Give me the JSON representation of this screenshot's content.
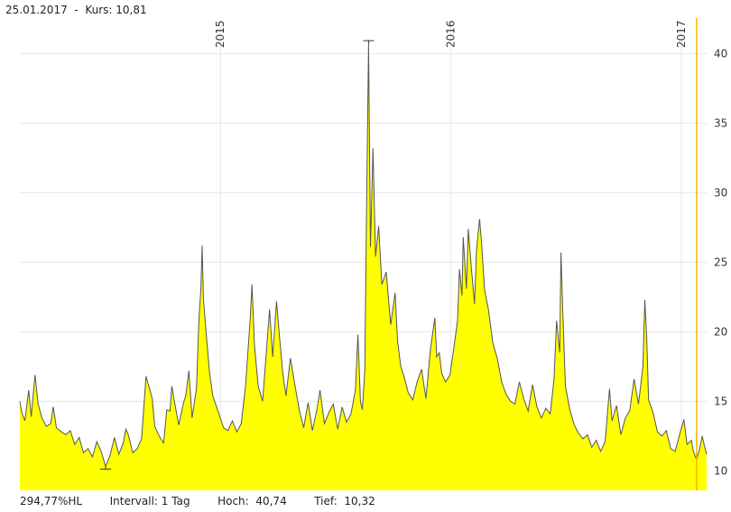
{
  "header": {
    "date": "25.01.2017",
    "separator": "-",
    "price_label": "Kurs:",
    "price_value": "10,81"
  },
  "footer": {
    "hl": "294,77%HL",
    "interval_label": "Intervall:",
    "interval_value": "1 Tag",
    "high_label": "Hoch:",
    "high_value": "40,74",
    "low_label": "Tief:",
    "low_value": "10,32"
  },
  "colors": {
    "fill": "#ffff00",
    "line": "#555555",
    "cursor": "#ffb300"
  },
  "chart_data": {
    "type": "area",
    "title": "",
    "xlabel": "",
    "ylabel": "",
    "ylim": [
      8.6,
      42.3
    ],
    "xlim": [
      "2014-02-17",
      "2017-02-10"
    ],
    "yticks": [
      10,
      15,
      20,
      25,
      30,
      35,
      40
    ],
    "year_markers": [
      {
        "label": "2015",
        "date": "2015-01-01"
      },
      {
        "label": "2016",
        "date": "2016-01-01"
      },
      {
        "label": "2017",
        "date": "2017-01-01"
      }
    ],
    "cursor_date": "2017-01-25",
    "high": {
      "date": "2015-08-24",
      "value": 40.74
    },
    "low": {
      "date": "2014-07-03",
      "value": 10.32
    },
    "grid": true,
    "series": [
      {
        "points": [
          [
            "2014-02-17",
            15.0
          ],
          [
            "2014-02-20",
            14.2
          ],
          [
            "2014-02-25",
            13.6
          ],
          [
            "2014-03-03",
            15.8
          ],
          [
            "2014-03-07",
            13.9
          ],
          [
            "2014-03-13",
            16.9
          ],
          [
            "2014-03-18",
            14.8
          ],
          [
            "2014-03-24",
            13.8
          ],
          [
            "2014-03-31",
            13.2
          ],
          [
            "2014-04-07",
            13.4
          ],
          [
            "2014-04-11",
            14.6
          ],
          [
            "2014-04-16",
            13.1
          ],
          [
            "2014-04-24",
            12.8
          ],
          [
            "2014-05-01",
            12.6
          ],
          [
            "2014-05-08",
            12.9
          ],
          [
            "2014-05-15",
            11.9
          ],
          [
            "2014-05-22",
            12.4
          ],
          [
            "2014-05-29",
            11.3
          ],
          [
            "2014-06-05",
            11.6
          ],
          [
            "2014-06-12",
            11.0
          ],
          [
            "2014-06-19",
            12.1
          ],
          [
            "2014-06-26",
            11.4
          ],
          [
            "2014-07-03",
            10.32
          ],
          [
            "2014-07-10",
            11.1
          ],
          [
            "2014-07-17",
            12.4
          ],
          [
            "2014-07-24",
            11.2
          ],
          [
            "2014-07-31",
            12.0
          ],
          [
            "2014-08-04",
            13.0
          ],
          [
            "2014-08-08",
            12.6
          ],
          [
            "2014-08-15",
            11.3
          ],
          [
            "2014-08-22",
            11.6
          ],
          [
            "2014-08-29",
            12.3
          ],
          [
            "2014-09-05",
            16.8
          ],
          [
            "2014-09-10",
            16.0
          ],
          [
            "2014-09-15",
            15.2
          ],
          [
            "2014-09-19",
            13.2
          ],
          [
            "2014-09-26",
            12.5
          ],
          [
            "2014-10-03",
            12.0
          ],
          [
            "2014-10-08",
            14.4
          ],
          [
            "2014-10-13",
            14.3
          ],
          [
            "2014-10-16",
            16.1
          ],
          [
            "2014-10-20",
            15.0
          ],
          [
            "2014-10-27",
            13.3
          ],
          [
            "2014-11-03",
            14.8
          ],
          [
            "2014-11-07",
            15.4
          ],
          [
            "2014-11-12",
            17.2
          ],
          [
            "2014-11-17",
            13.8
          ],
          [
            "2014-11-24",
            15.9
          ],
          [
            "2014-11-28",
            21.0
          ],
          [
            "2014-12-01",
            23.1
          ],
          [
            "2014-12-03",
            26.2
          ],
          [
            "2014-12-05",
            22.4
          ],
          [
            "2014-12-10",
            19.6
          ],
          [
            "2014-12-15",
            17.0
          ],
          [
            "2014-12-20",
            15.4
          ],
          [
            "2014-12-29",
            14.2
          ],
          [
            "2015-01-06",
            13.1
          ],
          [
            "2015-01-13",
            12.9
          ],
          [
            "2015-01-20",
            13.6
          ],
          [
            "2015-01-27",
            12.8
          ],
          [
            "2015-02-03",
            13.4
          ],
          [
            "2015-02-10",
            16.2
          ],
          [
            "2015-02-17",
            20.8
          ],
          [
            "2015-02-20",
            23.4
          ],
          [
            "2015-02-24",
            19.0
          ],
          [
            "2015-03-02",
            16.1
          ],
          [
            "2015-03-09",
            15.0
          ],
          [
            "2015-03-16",
            19.2
          ],
          [
            "2015-03-20",
            21.6
          ],
          [
            "2015-03-25",
            18.2
          ],
          [
            "2015-03-31",
            22.2
          ],
          [
            "2015-04-05",
            19.5
          ],
          [
            "2015-04-10",
            17.0
          ],
          [
            "2015-04-15",
            15.4
          ],
          [
            "2015-04-22",
            18.1
          ],
          [
            "2015-04-29",
            16.2
          ],
          [
            "2015-05-06",
            14.4
          ],
          [
            "2015-05-13",
            13.1
          ],
          [
            "2015-05-20",
            14.9
          ],
          [
            "2015-05-27",
            12.9
          ],
          [
            "2015-06-03",
            14.4
          ],
          [
            "2015-06-08",
            15.8
          ],
          [
            "2015-06-15",
            13.4
          ],
          [
            "2015-06-22",
            14.2
          ],
          [
            "2015-06-29",
            14.8
          ],
          [
            "2015-07-06",
            13.0
          ],
          [
            "2015-07-13",
            14.6
          ],
          [
            "2015-07-20",
            13.5
          ],
          [
            "2015-07-27",
            14.1
          ],
          [
            "2015-08-03",
            15.8
          ],
          [
            "2015-08-07",
            19.8
          ],
          [
            "2015-08-11",
            15.0
          ],
          [
            "2015-08-14",
            14.4
          ],
          [
            "2015-08-18",
            17.2
          ],
          [
            "2015-08-21",
            29.5
          ],
          [
            "2015-08-24",
            40.74
          ],
          [
            "2015-08-27",
            26.1
          ],
          [
            "2015-08-31",
            33.2
          ],
          [
            "2015-09-04",
            25.4
          ],
          [
            "2015-09-09",
            27.6
          ],
          [
            "2015-09-14",
            23.4
          ],
          [
            "2015-09-21",
            24.3
          ],
          [
            "2015-09-28",
            20.5
          ],
          [
            "2015-10-05",
            22.8
          ],
          [
            "2015-10-09",
            19.3
          ],
          [
            "2015-10-14",
            17.5
          ],
          [
            "2015-10-19",
            16.8
          ],
          [
            "2015-10-26",
            15.6
          ],
          [
            "2015-11-02",
            15.1
          ],
          [
            "2015-11-09",
            16.4
          ],
          [
            "2015-11-16",
            17.3
          ],
          [
            "2015-11-23",
            15.2
          ],
          [
            "2015-11-30",
            18.7
          ],
          [
            "2015-12-07",
            21.0
          ],
          [
            "2015-12-10",
            18.2
          ],
          [
            "2015-12-14",
            18.5
          ],
          [
            "2015-12-18",
            17.0
          ],
          [
            "2015-12-24",
            16.4
          ],
          [
            "2015-12-31",
            16.9
          ],
          [
            "2016-01-06",
            18.8
          ],
          [
            "2016-01-12",
            20.8
          ],
          [
            "2016-01-15",
            24.5
          ],
          [
            "2016-01-19",
            22.6
          ],
          [
            "2016-01-21",
            26.8
          ],
          [
            "2016-01-26",
            23.1
          ],
          [
            "2016-01-29",
            27.4
          ],
          [
            "2016-02-03",
            24.6
          ],
          [
            "2016-02-08",
            22.0
          ],
          [
            "2016-02-11",
            25.8
          ],
          [
            "2016-02-16",
            28.1
          ],
          [
            "2016-02-19",
            26.5
          ],
          [
            "2016-02-24",
            23.0
          ],
          [
            "2016-03-01",
            21.6
          ],
          [
            "2016-03-08",
            19.2
          ],
          [
            "2016-03-15",
            18.1
          ],
          [
            "2016-03-22",
            16.4
          ],
          [
            "2016-03-29",
            15.5
          ],
          [
            "2016-04-05",
            15.0
          ],
          [
            "2016-04-12",
            14.8
          ],
          [
            "2016-04-19",
            16.4
          ],
          [
            "2016-04-26",
            15.2
          ],
          [
            "2016-05-03",
            14.3
          ],
          [
            "2016-05-10",
            16.2
          ],
          [
            "2016-05-17",
            14.6
          ],
          [
            "2016-05-24",
            13.8
          ],
          [
            "2016-05-31",
            14.5
          ],
          [
            "2016-06-07",
            14.1
          ],
          [
            "2016-06-13",
            16.6
          ],
          [
            "2016-06-17",
            20.8
          ],
          [
            "2016-06-22",
            18.5
          ],
          [
            "2016-06-24",
            25.7
          ],
          [
            "2016-06-27",
            21.3
          ],
          [
            "2016-07-01",
            16.1
          ],
          [
            "2016-07-08",
            14.4
          ],
          [
            "2016-07-15",
            13.3
          ],
          [
            "2016-07-22",
            12.7
          ],
          [
            "2016-07-29",
            12.3
          ],
          [
            "2016-08-05",
            12.6
          ],
          [
            "2016-08-12",
            11.7
          ],
          [
            "2016-08-19",
            12.2
          ],
          [
            "2016-08-26",
            11.4
          ],
          [
            "2016-09-02",
            12.1
          ],
          [
            "2016-09-09",
            15.9
          ],
          [
            "2016-09-13",
            13.6
          ],
          [
            "2016-09-20",
            14.7
          ],
          [
            "2016-09-27",
            12.6
          ],
          [
            "2016-10-04",
            13.8
          ],
          [
            "2016-10-11",
            14.3
          ],
          [
            "2016-10-18",
            16.6
          ],
          [
            "2016-10-25",
            14.8
          ],
          [
            "2016-11-01",
            17.5
          ],
          [
            "2016-11-04",
            22.3
          ],
          [
            "2016-11-07",
            19.6
          ],
          [
            "2016-11-10",
            15.1
          ],
          [
            "2016-11-17",
            14.2
          ],
          [
            "2016-11-24",
            12.8
          ],
          [
            "2016-12-01",
            12.5
          ],
          [
            "2016-12-08",
            12.9
          ],
          [
            "2016-12-15",
            11.6
          ],
          [
            "2016-12-22",
            11.4
          ],
          [
            "2016-12-29",
            12.6
          ],
          [
            "2017-01-05",
            13.7
          ],
          [
            "2017-01-10",
            11.9
          ],
          [
            "2017-01-17",
            12.2
          ],
          [
            "2017-01-20",
            11.4
          ],
          [
            "2017-01-25",
            10.81
          ],
          [
            "2017-01-30",
            11.6
          ],
          [
            "2017-02-03",
            12.5
          ],
          [
            "2017-02-07",
            11.7
          ],
          [
            "2017-02-10",
            11.2
          ]
        ]
      }
    ]
  }
}
